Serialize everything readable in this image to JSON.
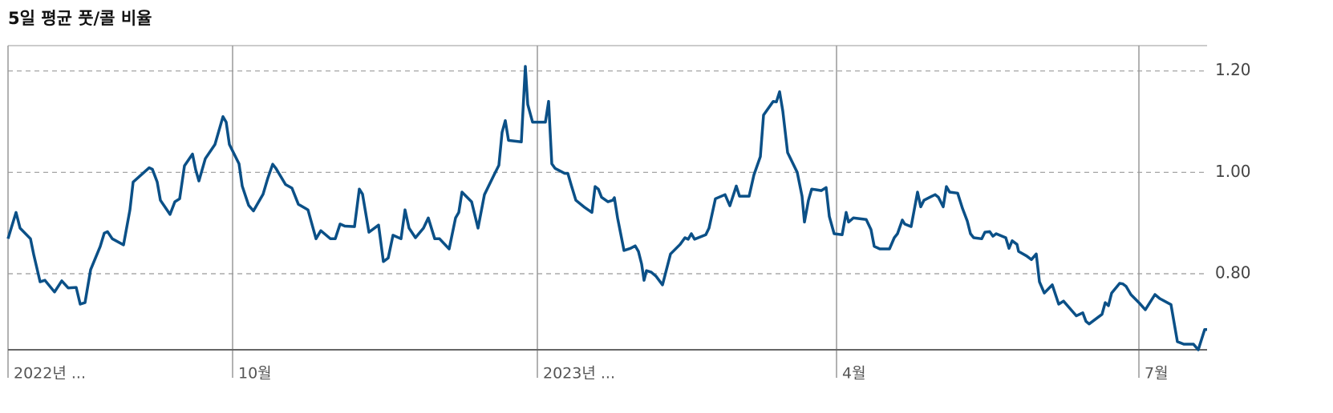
{
  "chart_data": {
    "type": "line",
    "title": "5일 평균 풋/콜 비율",
    "color": "#0b5087",
    "x": [
      0,
      4,
      10,
      15,
      28,
      32,
      40,
      46,
      58,
      67,
      75,
      85,
      90,
      96,
      103,
      115,
      120,
      124,
      130,
      144,
      152,
      156,
      176,
      180,
      186,
      190,
      202,
      208,
      214,
      220,
      230,
      234,
      238,
      246,
      258,
      268,
      272,
      276,
      288,
      292,
      300,
      306,
      318,
      324,
      330,
      334,
      346,
      354,
      362,
      374,
      384,
      390,
      402,
      408,
      414,
      420,
      432,
      438,
      442,
      450,
      462,
      468,
      474,
      480,
      490,
      495,
      500,
      508,
      518,
      524,
      532,
      538,
      550,
      558,
      562,
      566,
      578,
      586,
      594,
      606,
      612,
      616,
      620,
      624,
      640,
      645,
      648,
      654,
      670,
      674,
      678,
      682,
      694,
      698,
      702,
      708,
      718,
      728,
      732,
      736,
      740,
      748,
      754,
      756,
      760,
      768,
      776,
      782,
      786,
      790,
      793,
      796,
      802,
      808,
      816,
      826,
      838,
      844,
      848,
      852,
      856,
      870,
      874,
      882,
      894,
      900,
      908,
      912,
      924,
      930,
      938,
      942,
      954,
      958,
      962,
      966,
      972,
      984,
      990,
      993,
      998,
      1002,
      1014,
      1020,
      1024,
      1030,
      1040,
      1045,
      1048,
      1054,
      1070,
      1076,
      1080,
      1087,
      1099,
      1105,
      1109,
      1115,
      1118,
      1126,
      1134,
      1138,
      1142,
      1152,
      1156,
      1160,
      1166,
      1170,
      1174,
      1184,
      1190,
      1196,
      1200,
      1204,
      1214,
      1218,
      1224,
      1228,
      1232,
      1244,
      1248,
      1252,
      1258,
      1260,
      1270,
      1276,
      1282,
      1286,
      1292,
      1302,
      1310,
      1316,
      1332,
      1340,
      1344,
      1348,
      1364,
      1368,
      1372,
      1376,
      1386,
      1390,
      1394,
      1400,
      1410,
      1418,
      1430,
      1436,
      1450,
      1458,
      1466,
      1478,
      1484,
      1492,
      1495
    ],
    "values": [
      0.869,
      0.89,
      0.921,
      0.89,
      0.869,
      0.838,
      0.784,
      0.787,
      0.764,
      0.786,
      0.772,
      0.773,
      0.74,
      0.743,
      0.808,
      0.854,
      0.88,
      0.883,
      0.869,
      0.857,
      0.926,
      0.981,
      1.009,
      1.006,
      0.981,
      0.945,
      0.917,
      0.942,
      0.948,
      1.013,
      1.036,
      1.005,
      0.983,
      1.027,
      1.055,
      1.11,
      1.099,
      1.055,
      1.017,
      0.973,
      0.935,
      0.924,
      0.957,
      0.989,
      1.016,
      1.008,
      0.976,
      0.969,
      0.937,
      0.926,
      0.869,
      0.885,
      0.869,
      0.869,
      0.898,
      0.894,
      0.893,
      0.967,
      0.957,
      0.882,
      0.896,
      0.824,
      0.831,
      0.876,
      0.869,
      0.926,
      0.89,
      0.871,
      0.89,
      0.91,
      0.869,
      0.869,
      0.849,
      0.91,
      0.921,
      0.961,
      0.942,
      0.89,
      0.956,
      0.995,
      1.014,
      1.079,
      1.102,
      1.063,
      1.06,
      1.209,
      1.134,
      1.099,
      1.099,
      1.14,
      1.017,
      1.008,
      0.998,
      0.998,
      0.976,
      0.945,
      0.932,
      0.921,
      0.972,
      0.967,
      0.951,
      0.942,
      0.945,
      0.95,
      0.91,
      0.846,
      0.85,
      0.855,
      0.844,
      0.819,
      0.787,
      0.806,
      0.803,
      0.795,
      0.778,
      0.839,
      0.858,
      0.871,
      0.868,
      0.879,
      0.868,
      0.877,
      0.89,
      0.948,
      0.956,
      0.934,
      0.973,
      0.953,
      0.953,
      0.995,
      1.031,
      1.113,
      1.14,
      1.139,
      1.159,
      1.121,
      1.039,
      1.0,
      0.953,
      0.902,
      0.945,
      0.967,
      0.964,
      0.97,
      0.913,
      0.879,
      0.877,
      0.921,
      0.902,
      0.91,
      0.907,
      0.887,
      0.854,
      0.849,
      0.849,
      0.871,
      0.879,
      0.906,
      0.898,
      0.893,
      0.961,
      0.932,
      0.945,
      0.953,
      0.956,
      0.951,
      0.932,
      0.972,
      0.961,
      0.959,
      0.929,
      0.904,
      0.879,
      0.871,
      0.869,
      0.882,
      0.883,
      0.874,
      0.879,
      0.871,
      0.85,
      0.865,
      0.858,
      0.844,
      0.835,
      0.828,
      0.839,
      0.784,
      0.762,
      0.778,
      0.74,
      0.746,
      0.717,
      0.723,
      0.706,
      0.701,
      0.72,
      0.743,
      0.737,
      0.762,
      0.781,
      0.78,
      0.775,
      0.759,
      0.743,
      0.729,
      0.759,
      0.751,
      0.739,
      0.666,
      0.661,
      0.661,
      0.65,
      0.69,
      0.69
    ],
    "xlim": [
      0,
      1495
    ],
    "xticks": [
      {
        "value": 0,
        "label": "2022년 ..."
      },
      {
        "value": 280,
        "label": "10월"
      },
      {
        "value": 660,
        "label": "2023년 ..."
      },
      {
        "value": 1033,
        "label": "4월"
      },
      {
        "value": 1410,
        "label": "7월"
      }
    ],
    "ylim": [
      0.65,
      1.25
    ],
    "yticks": [
      {
        "value": 1.2,
        "label": "1.20"
      },
      {
        "value": 1.0,
        "label": "1.00"
      },
      {
        "value": 0.8,
        "label": "0.80"
      }
    ],
    "grid": true
  }
}
